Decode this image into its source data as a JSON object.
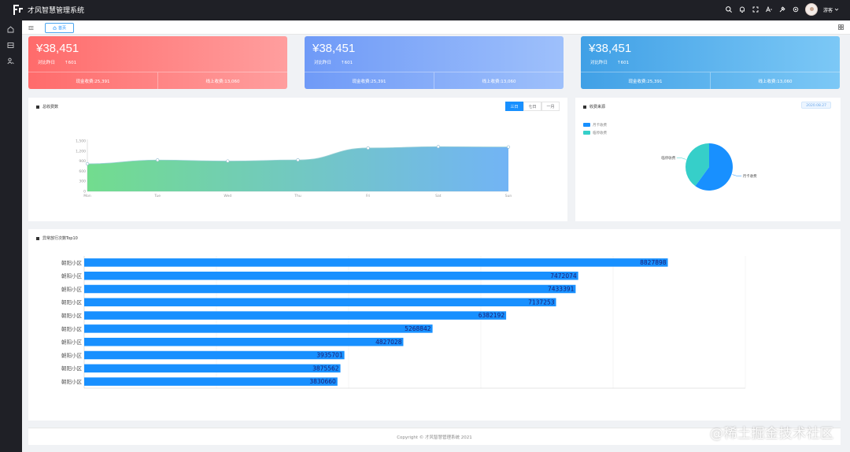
{
  "app": {
    "title": "才风智慧管理系统",
    "user_name": "游客"
  },
  "tabs": [
    {
      "label": "首页"
    }
  ],
  "stat_cards": [
    {
      "amount": "¥38,451",
      "compare_label": "对比昨日",
      "compare_value": "↑601",
      "cash_label": "现金收费:25,391",
      "online_label": "线上收费:13,060",
      "gradient": [
        "#ff6b6b",
        "#ff9e9e"
      ]
    },
    {
      "amount": "¥38,451",
      "compare_label": "对比昨日",
      "compare_value": "↑601",
      "cash_label": "现金收费:25,391",
      "online_label": "线上收费:13,060",
      "gradient": [
        "#6f9af7",
        "#9ec0fb"
      ]
    },
    {
      "amount": "¥38,451",
      "compare_label": "对比昨日",
      "compare_value": "↑601",
      "cash_label": "现金收费:25,391",
      "online_label": "线上收费:13,060",
      "gradient": [
        "#40a0e6",
        "#7cc8f6"
      ]
    }
  ],
  "total_panel": {
    "title": "总收费数",
    "buttons": [
      "三日",
      "七日",
      "一月"
    ],
    "active_button": "三日"
  },
  "source_panel": {
    "title": "收费来源",
    "date": "2020.08.27"
  },
  "top10_panel": {
    "title": "异常放行次数Top10"
  },
  "footer": {
    "text": "Copyright © 才风智慧管理系统 2021"
  },
  "watermark": "@稀土掘金技术社区",
  "colors": {
    "accent": "#1890ff",
    "area_start": "#72dc8e",
    "area_end": "#72b4f5",
    "pie_a": "#1890ff",
    "pie_b": "#36cfc9",
    "bar": "#1890ff"
  },
  "chart_data": [
    {
      "type": "area",
      "x": [
        "Mon",
        "Tue",
        "Wed",
        "Thu",
        "Fri",
        "Sat",
        "Sun"
      ],
      "series": [
        {
          "values": [
            820,
            932,
            901,
            934,
            1290,
            1330,
            1320
          ]
        }
      ],
      "yticks": [
        0,
        300,
        600,
        900,
        1200,
        1500
      ],
      "ylim": [
        0,
        1500
      ],
      "grid": false,
      "legend": "none"
    },
    {
      "type": "pie",
      "labels": [
        "月卡收费",
        "临停收费"
      ],
      "values": [
        60,
        40
      ],
      "legend": "top-left"
    },
    {
      "type": "bar",
      "orientation": "horizontal",
      "categories": [
        "朝阳小区",
        "朝阳小区",
        "朝阳小区",
        "朝阳小区",
        "朝阳小区",
        "朝阳小区",
        "朝阳小区",
        "朝阳小区",
        "朝阳小区",
        "朝阳小区"
      ],
      "values": [
        8827898,
        7472074,
        7433391,
        7137253,
        6382192,
        5268842,
        4827028,
        3935701,
        3875562,
        3830660
      ],
      "xlim": [
        0,
        10000000
      ],
      "grid": true,
      "legend": "none"
    }
  ]
}
